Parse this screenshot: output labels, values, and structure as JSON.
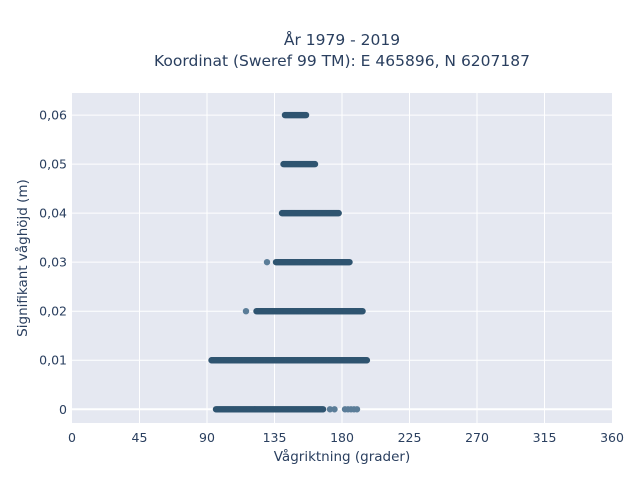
{
  "chart_data": {
    "type": "scatter",
    "title": "År 1979 - 2019",
    "subtitle": "Koordinat (Sweref 99 TM): E 465896, N 6207187",
    "xlabel": "Vågriktning (grader)",
    "ylabel": "Signifikant våghöjd (m)",
    "xlim": [
      0,
      360
    ],
    "ylim": [
      -0.0028,
      0.0645
    ],
    "x_ticks": [
      0,
      45,
      90,
      135,
      180,
      225,
      270,
      315,
      360
    ],
    "x_tick_labels": [
      "0",
      "45",
      "90",
      "135",
      "180",
      "225",
      "270",
      "315",
      "360"
    ],
    "y_ticks": [
      0,
      0.01,
      0.02,
      0.03,
      0.04,
      0.05,
      0.06
    ],
    "y_tick_labels": [
      "0",
      "0,01",
      "0,02",
      "0,03",
      "0,04",
      "0,05",
      "0,06"
    ],
    "grid": true,
    "marker_color": "#2f5470",
    "plot_background": "#e5e8f1",
    "point_bands": [
      {
        "y": 0.0,
        "x_min": 94,
        "x_max": 190,
        "dense_min": 96,
        "dense_max": 168,
        "outliers": [
          172,
          175,
          182,
          184,
          186,
          188,
          190
        ]
      },
      {
        "y": 0.01,
        "x_min": 93,
        "x_max": 197,
        "dense_min": 93,
        "dense_max": 197,
        "outliers": []
      },
      {
        "y": 0.02,
        "x_min": 116,
        "x_max": 194,
        "dense_min": 123,
        "dense_max": 194,
        "outliers": [
          116
        ]
      },
      {
        "y": 0.03,
        "x_min": 130,
        "x_max": 185,
        "dense_min": 136,
        "dense_max": 185,
        "outliers": [
          130
        ]
      },
      {
        "y": 0.04,
        "x_min": 140,
        "x_max": 178,
        "dense_min": 140,
        "dense_max": 178,
        "outliers": []
      },
      {
        "y": 0.05,
        "x_min": 141,
        "x_max": 162,
        "dense_min": 141,
        "dense_max": 162,
        "outliers": []
      },
      {
        "y": 0.06,
        "x_min": 142,
        "x_max": 156,
        "dense_min": 142,
        "dense_max": 156,
        "outliers": []
      }
    ]
  }
}
